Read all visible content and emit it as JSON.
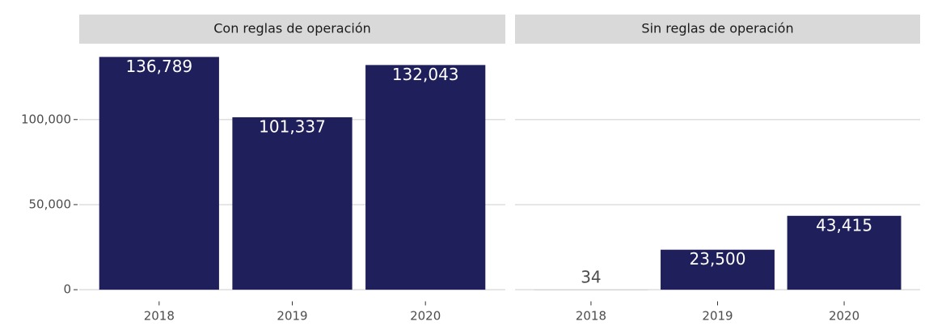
{
  "chart_data": {
    "type": "bar",
    "color": "#1f1f5b",
    "grid": true,
    "ylim": [
      -6839,
      143628
    ],
    "yticks": [
      0,
      {
        "value": 50000,
        "label": "50,000"
      },
      {
        "value": 100000,
        "label": "100,000"
      }
    ],
    "facets": [
      {
        "title": "Con reglas de operación",
        "categories": [
          "2018",
          "2019",
          "2020"
        ],
        "values": [
          136789,
          101337,
          132043
        ],
        "value_labels": [
          "136,789",
          "101,337",
          "132,043"
        ]
      },
      {
        "title": "Sin reglas de operación",
        "categories": [
          "2018",
          "2019",
          "2020"
        ],
        "values": [
          34,
          23500,
          43415
        ],
        "value_labels": [
          "34",
          "23,500",
          "43,415"
        ]
      }
    ]
  }
}
